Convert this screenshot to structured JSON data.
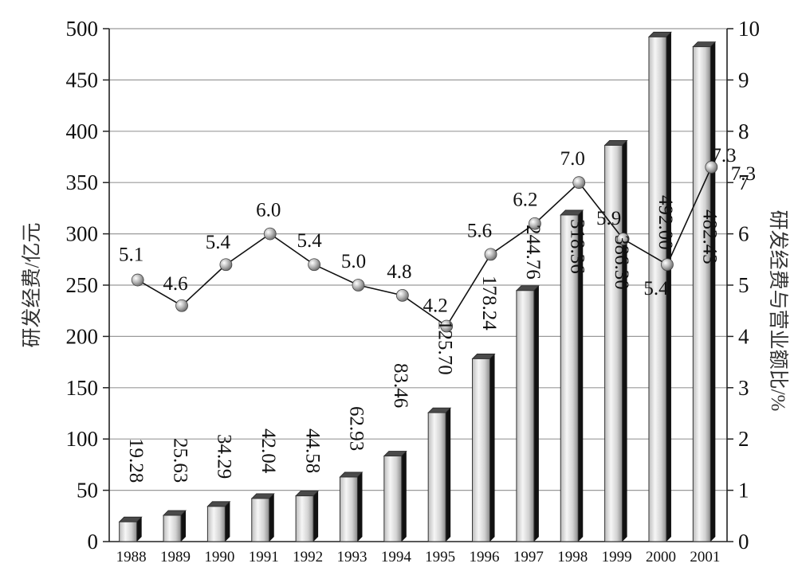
{
  "chart_data": {
    "type": "bar",
    "categories": [
      "1988",
      "1989",
      "1990",
      "1991",
      "1992",
      "1993",
      "1994",
      "1995",
      "1996",
      "1997",
      "1998",
      "1999",
      "2000",
      "2001"
    ],
    "series": [
      {
        "type": "bar",
        "axis": "left",
        "values": [
          19.28,
          25.63,
          34.29,
          42.04,
          44.58,
          62.93,
          83.46,
          125.7,
          178.24,
          244.76,
          318.36,
          386.3,
          492.0,
          482.43
        ],
        "labels": [
          "19.28",
          "25.63",
          "34.29",
          "42.04",
          "44.58",
          "62.93",
          "83.46",
          "125.70",
          "178.24",
          "244.76",
          "318.36",
          "386.30",
          "492.00",
          "482.43"
        ]
      },
      {
        "type": "line",
        "axis": "right",
        "values": [
          5.1,
          4.6,
          5.4,
          6.0,
          5.4,
          5.0,
          4.8,
          4.2,
          5.6,
          6.2,
          7.0,
          5.9,
          5.4,
          7.3
        ],
        "labels": [
          "5.1",
          "4.6",
          "5.4",
          "6.0",
          "5.4",
          "5.0",
          "4.8",
          "4.2",
          "5.6",
          "6.2",
          "7.0",
          "5.9",
          "5.4",
          "7.3"
        ]
      }
    ],
    "extra_labels": [
      "7.3"
    ],
    "ylabel_left": "研发经费/亿元",
    "ylabel_right": "研发经费与营业额比/%",
    "ylim_left": [
      0,
      500
    ],
    "ylim_right": [
      0,
      10
    ],
    "yticks_left": [
      "0",
      "50",
      "100",
      "150",
      "200",
      "250",
      "300",
      "350",
      "400",
      "450",
      "500"
    ],
    "yticks_right": [
      "0",
      "1",
      "2",
      "3",
      "4",
      "5",
      "6",
      "7",
      "8",
      "9",
      "10"
    ],
    "grid": true
  }
}
